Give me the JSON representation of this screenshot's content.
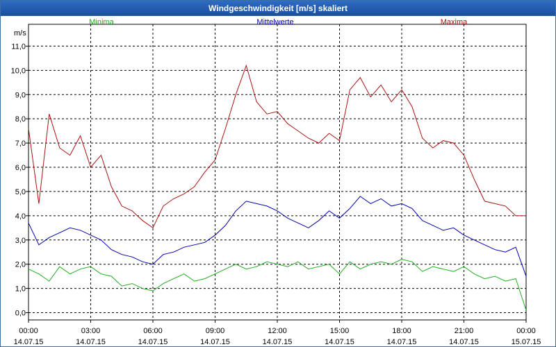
{
  "window": {
    "title": "Windgeschwindigkeit [m/s] skaliert"
  },
  "chart_data": {
    "type": "line",
    "title": "Windgeschwindigkeit [m/s] skaliert",
    "ylabel": "m/s",
    "ylim": [
      -0.3,
      11.9
    ],
    "yticks": [
      "0,0",
      "1,0",
      "2,0",
      "3,0",
      "4,0",
      "5,0",
      "6,0",
      "7,0",
      "8,0",
      "9,0",
      "10,0",
      "11,0"
    ],
    "xticks": [
      {
        "time": "00:00",
        "date": "14.07.15"
      },
      {
        "time": "03:00",
        "date": "14.07.15"
      },
      {
        "time": "06:00",
        "date": "14.07.15"
      },
      {
        "time": "09:00",
        "date": "14.07.15"
      },
      {
        "time": "12:00",
        "date": "14.07.15"
      },
      {
        "time": "15:00",
        "date": "14.07.15"
      },
      {
        "time": "18:00",
        "date": "14.07.15"
      },
      {
        "time": "21:00",
        "date": "14.07.15"
      },
      {
        "time": "00:00",
        "date": "15.07.15"
      }
    ],
    "xlim_hours": [
      0,
      24
    ],
    "grid": true,
    "series": [
      {
        "name": "Minima",
        "color": "#22aa22",
        "hours": [
          0,
          0.5,
          1,
          1.5,
          2,
          2.5,
          3,
          3.5,
          4,
          4.5,
          5,
          5.5,
          6,
          6.5,
          7,
          7.5,
          8,
          8.5,
          9,
          9.5,
          10,
          10.5,
          11,
          11.5,
          12,
          12.5,
          13,
          13.5,
          14,
          14.5,
          15,
          15.5,
          16,
          16.5,
          17,
          17.5,
          18,
          18.5,
          19,
          19.5,
          20,
          20.5,
          21,
          21.5,
          22,
          22.5,
          23,
          23.5,
          24
        ],
        "values": [
          1.8,
          1.6,
          1.3,
          1.9,
          1.6,
          1.8,
          1.9,
          1.6,
          1.5,
          1.1,
          1.2,
          1.0,
          0.9,
          1.2,
          1.4,
          1.6,
          1.3,
          1.4,
          1.6,
          1.8,
          2.0,
          1.8,
          1.9,
          2.1,
          2.0,
          1.9,
          2.1,
          1.8,
          1.9,
          2.0,
          1.6,
          2.1,
          1.8,
          2.0,
          2.1,
          2.0,
          2.2,
          2.1,
          1.7,
          1.9,
          1.8,
          1.7,
          1.9,
          1.6,
          1.4,
          1.5,
          1.3,
          1.4,
          0.1
        ]
      },
      {
        "name": "Mittelwerte",
        "color": "#0000aa",
        "hours": [
          0,
          0.5,
          1,
          1.5,
          2,
          2.5,
          3,
          3.5,
          4,
          4.5,
          5,
          5.5,
          6,
          6.5,
          7,
          7.5,
          8,
          8.5,
          9,
          9.5,
          10,
          10.5,
          11,
          11.5,
          12,
          12.5,
          13,
          13.5,
          14,
          14.5,
          15,
          15.5,
          16,
          16.5,
          17,
          17.5,
          18,
          18.5,
          19,
          19.5,
          20,
          20.5,
          21,
          21.5,
          22,
          22.5,
          23,
          23.5,
          24
        ],
        "values": [
          3.7,
          2.8,
          3.1,
          3.3,
          3.5,
          3.4,
          3.2,
          3.0,
          2.6,
          2.4,
          2.3,
          2.1,
          2.0,
          2.4,
          2.5,
          2.7,
          2.8,
          2.9,
          3.2,
          3.6,
          4.2,
          4.6,
          4.5,
          4.4,
          4.2,
          3.9,
          3.7,
          3.5,
          3.8,
          4.2,
          3.9,
          4.3,
          4.8,
          4.5,
          4.7,
          4.4,
          4.5,
          4.3,
          3.8,
          3.6,
          3.4,
          3.5,
          3.2,
          3.0,
          2.8,
          2.6,
          2.5,
          2.7,
          1.5
        ]
      },
      {
        "name": "Maxima",
        "color": "#aa1111",
        "hours": [
          0,
          0.5,
          1,
          1.5,
          2,
          2.5,
          3,
          3.5,
          4,
          4.5,
          5,
          5.5,
          6,
          6.5,
          7,
          7.5,
          8,
          8.5,
          9,
          9.5,
          10,
          10.5,
          11,
          11.5,
          12,
          12.5,
          13,
          13.5,
          14,
          14.5,
          15,
          15.5,
          16,
          16.5,
          17,
          17.5,
          18,
          18.5,
          19,
          19.5,
          20,
          20.5,
          21,
          21.5,
          22,
          22.5,
          23,
          23.5,
          24
        ],
        "values": [
          7.6,
          4.5,
          8.2,
          6.8,
          6.5,
          7.3,
          6.0,
          6.5,
          5.2,
          4.4,
          4.2,
          3.8,
          3.5,
          4.4,
          4.7,
          4.9,
          5.2,
          5.8,
          6.3,
          7.6,
          9.0,
          10.2,
          8.7,
          8.2,
          8.3,
          7.8,
          7.5,
          7.2,
          7.0,
          7.4,
          7.1,
          9.2,
          9.7,
          8.9,
          9.4,
          8.7,
          9.2,
          8.5,
          7.2,
          6.8,
          7.1,
          7.0,
          6.5,
          5.5,
          4.6,
          4.5,
          4.4,
          4.0,
          4.0
        ]
      }
    ]
  }
}
